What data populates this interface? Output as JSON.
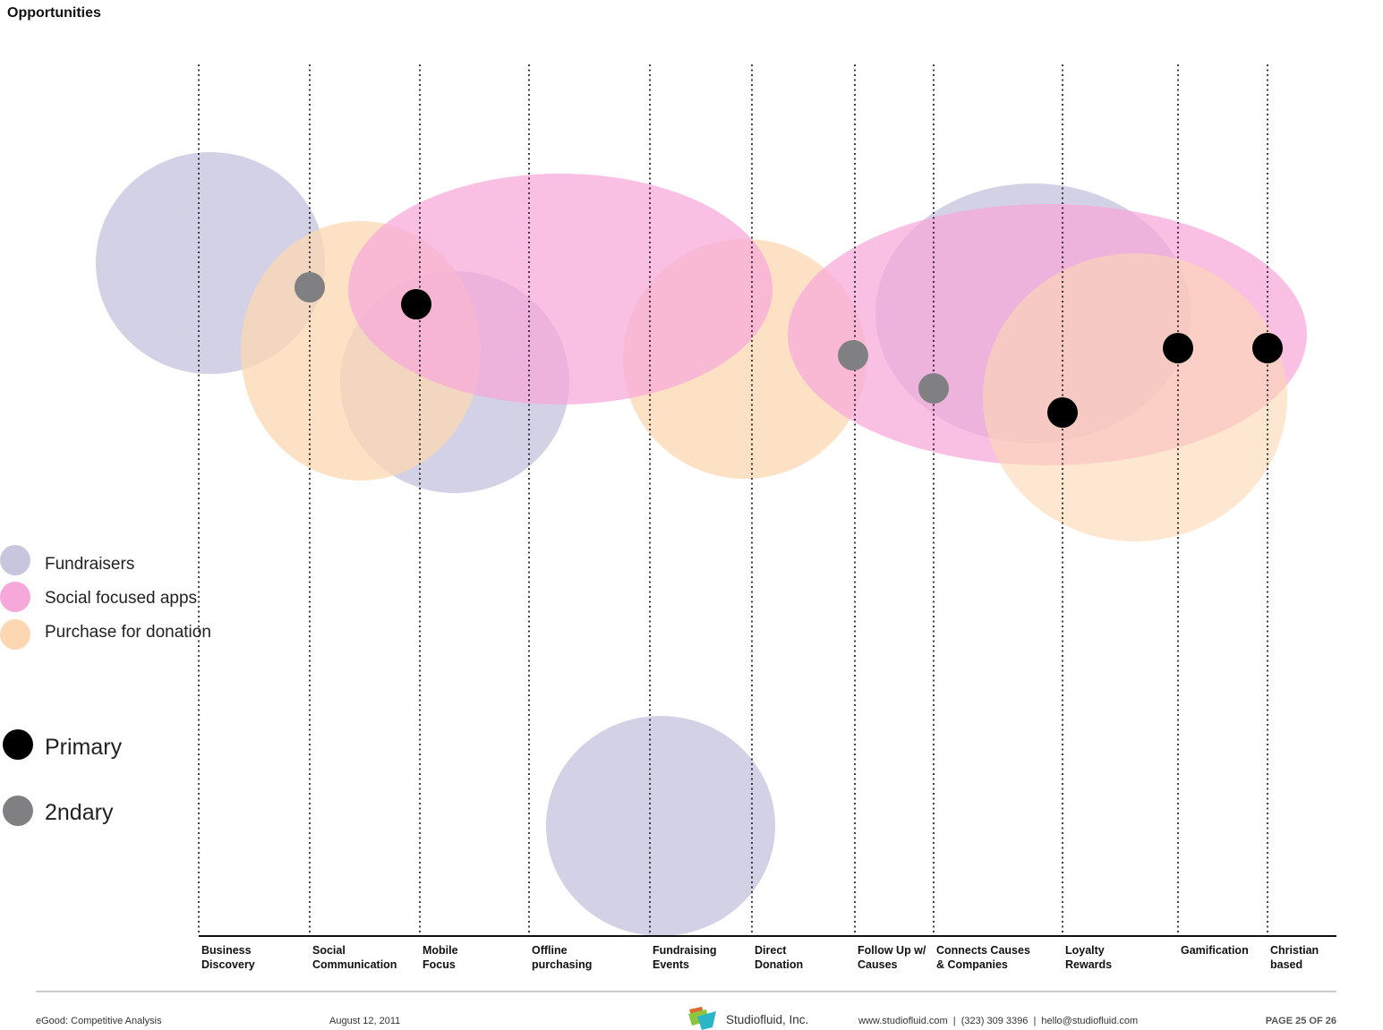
{
  "page": {
    "title": "Opportunities"
  },
  "diagram": {
    "categories": [
      {
        "id": "business-discovery",
        "lines": [
          "Business",
          "Discovery"
        ]
      },
      {
        "id": "social-communication",
        "lines": [
          "Social",
          "Communication"
        ]
      },
      {
        "id": "mobile-focus",
        "lines": [
          "Mobile",
          "Focus"
        ]
      },
      {
        "id": "offline-purchasing",
        "lines": [
          "Offline",
          "purchasing"
        ]
      },
      {
        "id": "fundraising-events",
        "lines": [
          "Fundraising",
          "Events"
        ]
      },
      {
        "id": "direct-donation",
        "lines": [
          "Direct",
          "Donation"
        ]
      },
      {
        "id": "follow-up-causes",
        "lines": [
          "Follow Up w/",
          "Causes"
        ]
      },
      {
        "id": "connects-causes-companies",
        "lines": [
          "Connects Causes",
          "& Companies"
        ]
      },
      {
        "id": "loyalty-rewards",
        "lines": [
          "Loyalty",
          "Rewards"
        ]
      },
      {
        "id": "gamification",
        "lines": [
          "Gamification"
        ]
      },
      {
        "id": "christian-based",
        "lines": [
          "Christian",
          "based"
        ]
      }
    ],
    "groups": {
      "fundraisers": {
        "label": "Fundraisers",
        "color": "#c8c6de"
      },
      "social": {
        "label": "Social focused apps",
        "color": "#f7a8da"
      },
      "purchase": {
        "label": "Purchase for donation",
        "color": "#fcd7b2"
      }
    },
    "markers": {
      "primary": {
        "label": "Primary",
        "color": "#000000"
      },
      "secondary": {
        "label": "2ndary",
        "color": "#808083"
      }
    },
    "primary_at": [
      "mobile-focus",
      "loyalty-rewards",
      "gamification",
      "christian-based"
    ],
    "secondary_at": [
      "social-communication",
      "follow-up-causes",
      "connects-causes-companies"
    ]
  },
  "footer": {
    "doc_title": "eGood: Competitive Analysis",
    "date": "August 12, 2011",
    "company": "Studiofluid, Inc.",
    "contact": "www.studiofluid.com  |  (323) 309 3396  |  hello@studiofluid.com",
    "page_number": "PAGE 25 OF 26",
    "logo_colors": [
      "#e06a2c",
      "#8cc63f",
      "#2bb5c9"
    ]
  }
}
